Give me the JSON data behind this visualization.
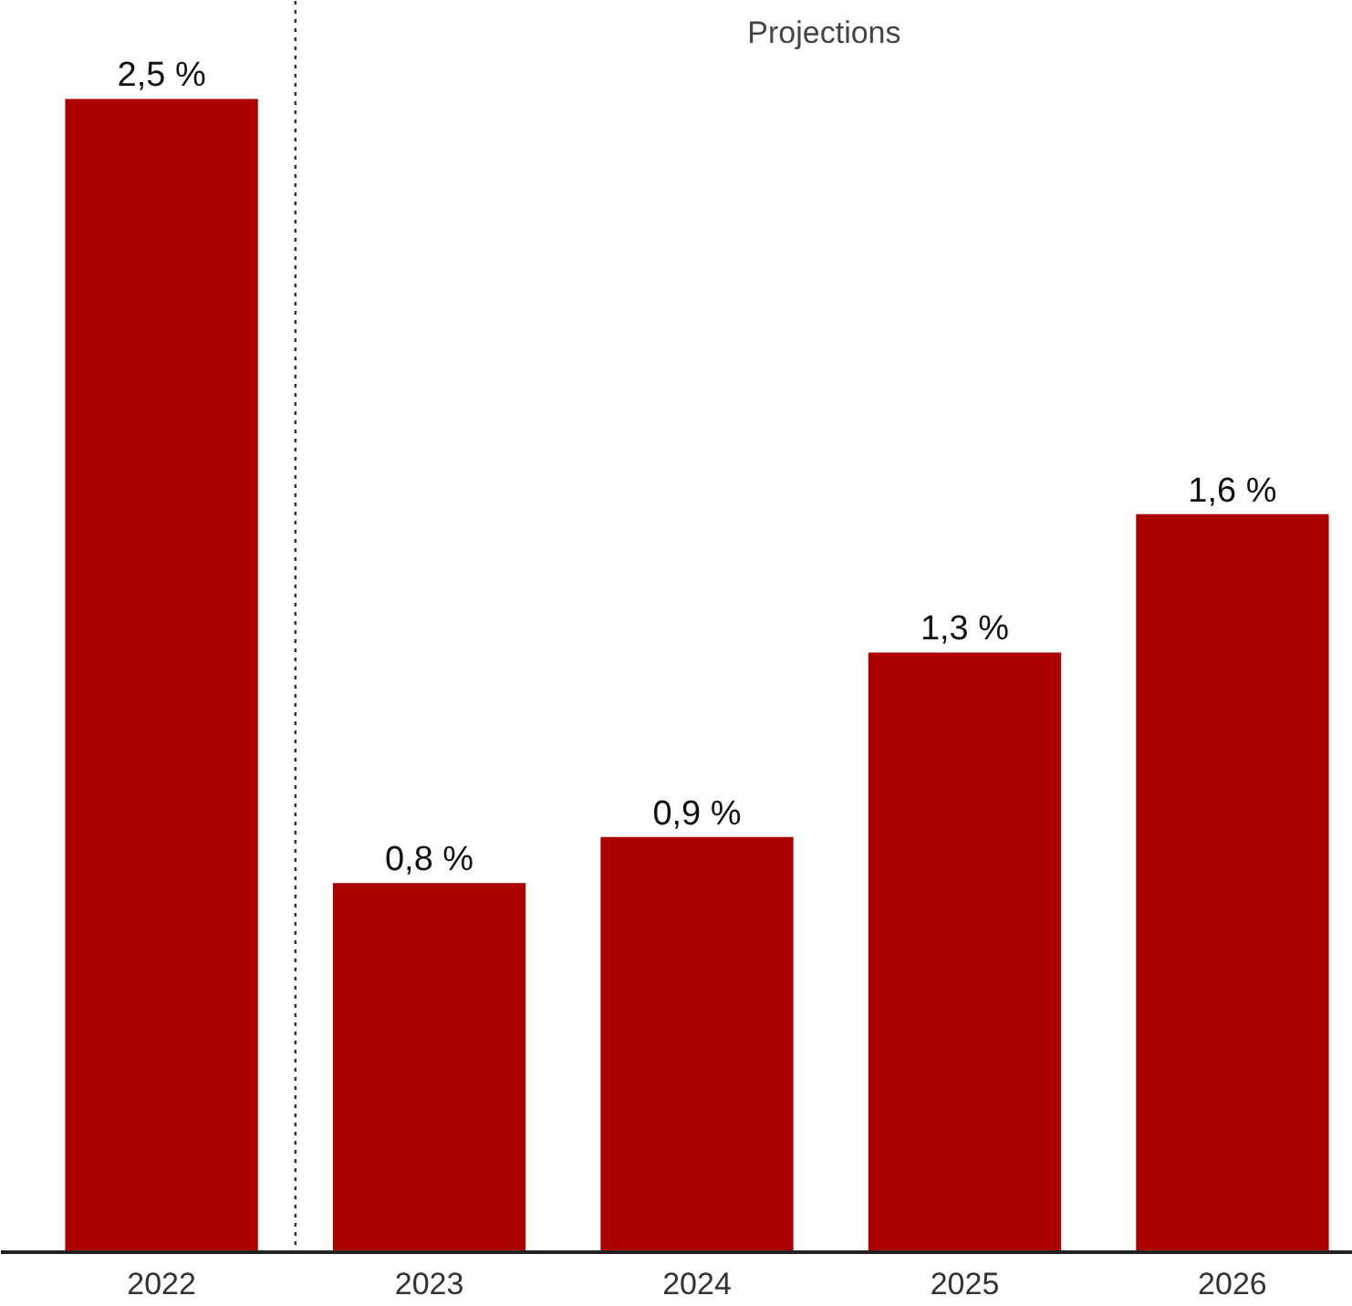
{
  "chart_data": {
    "type": "bar",
    "x": [
      2022,
      2023,
      2024,
      2025,
      2026
    ],
    "values": [
      2.5,
      0.8,
      0.9,
      1.3,
      1.6
    ],
    "value_labels": [
      "2,5 %",
      "0,8 %",
      "0,9 %",
      "1,3 %",
      "1,6 %"
    ],
    "color": "#ad0000",
    "xlim": [
      2021.4,
      2026.45
    ],
    "xticks": [
      2022,
      2023,
      2024,
      2025,
      2026
    ],
    "ref_lines": [
      {
        "axis": "x",
        "value": 2022.5,
        "label": "Projections",
        "line_style": "dotted",
        "color": "#333333"
      }
    ],
    "grid": false,
    "tick_labels": "x"
  }
}
